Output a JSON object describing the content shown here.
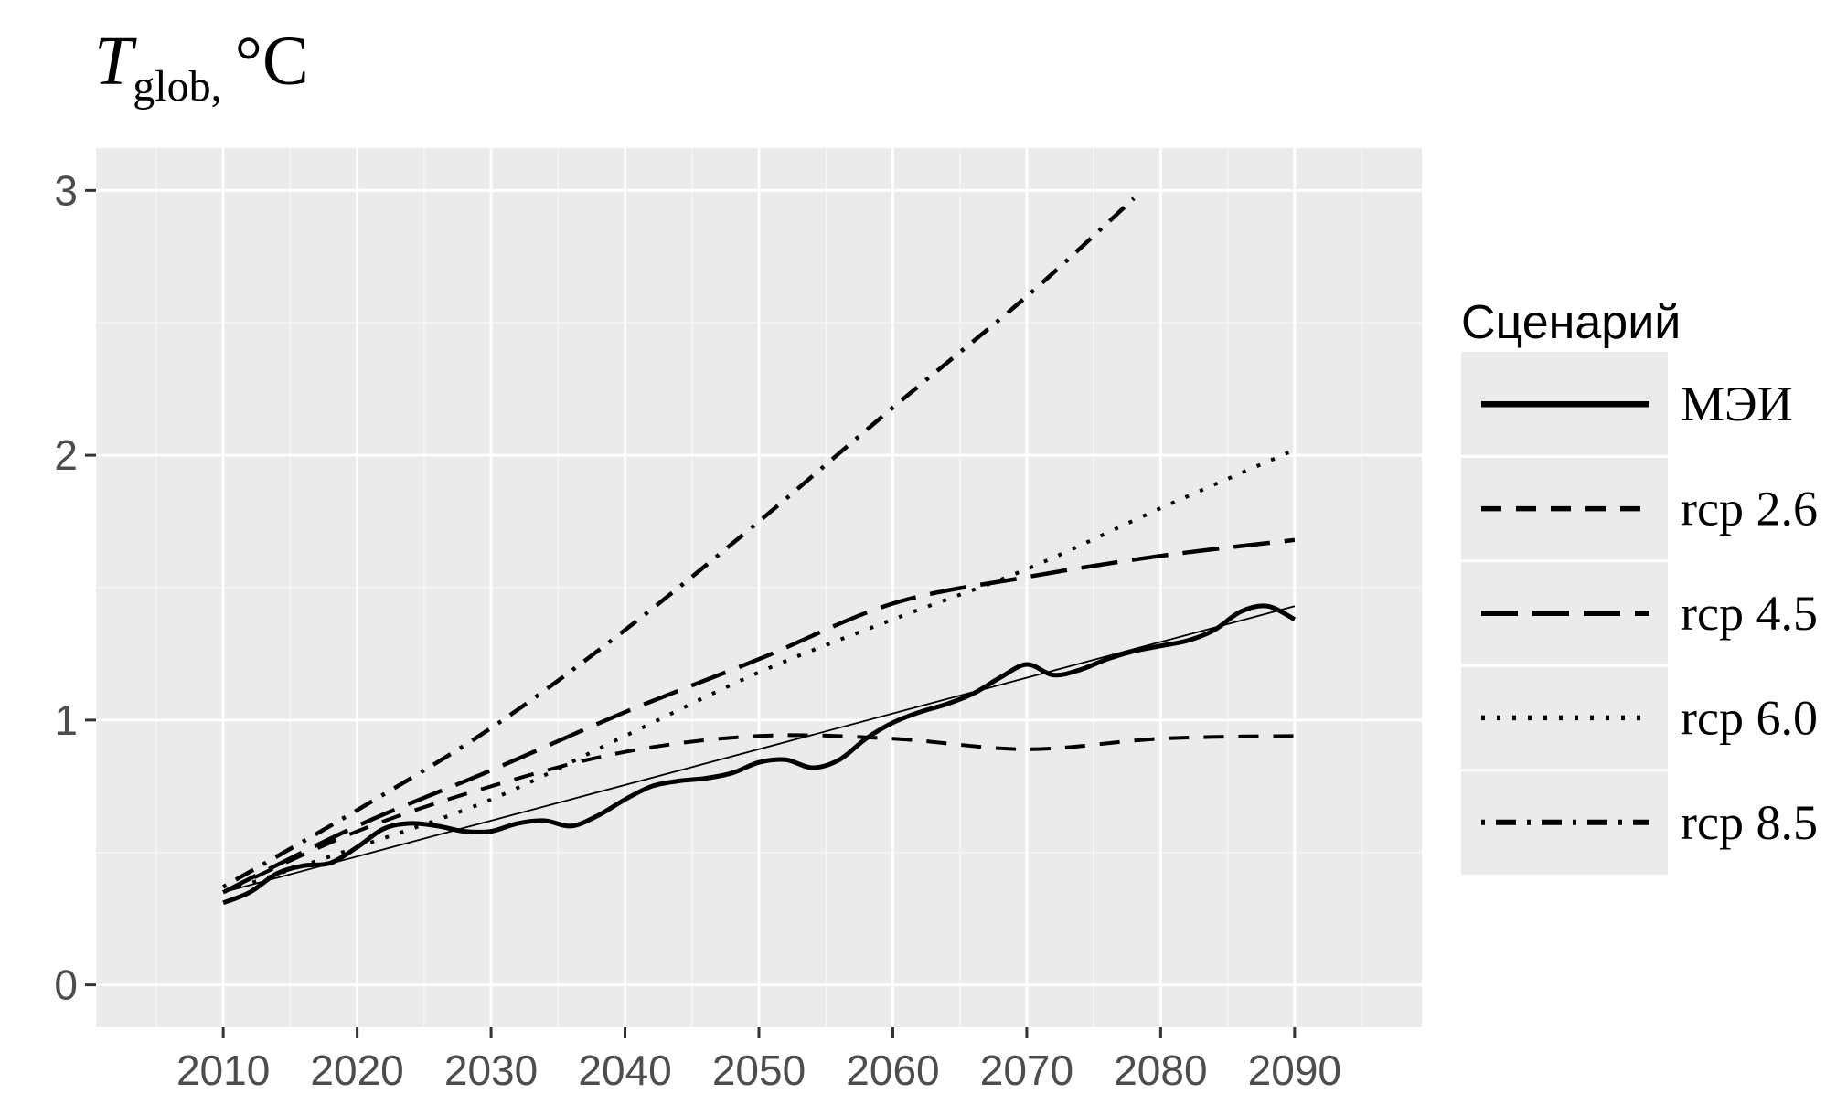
{
  "chart_data": {
    "type": "line",
    "ylabel": {
      "symbol": "T",
      "subscript": "glob,",
      "unit": "°C"
    },
    "xlim": [
      2000.5,
      2099.5
    ],
    "ylim": [
      -0.16,
      3.16
    ],
    "x_ticks": [
      2010,
      2020,
      2030,
      2040,
      2050,
      2060,
      2070,
      2080,
      2090
    ],
    "y_ticks": [
      0,
      1,
      2,
      3
    ],
    "grid": true,
    "legend": {
      "title": "Сценарий",
      "placement": "right"
    },
    "series": [
      {
        "name": "МЭИ",
        "style": "solid",
        "x": [
          2010,
          2012,
          2014,
          2016,
          2018,
          2020,
          2022,
          2024,
          2026,
          2028,
          2030,
          2032,
          2034,
          2036,
          2038,
          2040,
          2042,
          2044,
          2046,
          2048,
          2050,
          2052,
          2054,
          2056,
          2058,
          2060,
          2062,
          2064,
          2066,
          2068,
          2070,
          2072,
          2074,
          2076,
          2078,
          2080,
          2082,
          2084,
          2086,
          2088,
          2090
        ],
        "y": [
          0.31,
          0.35,
          0.42,
          0.45,
          0.46,
          0.52,
          0.59,
          0.61,
          0.6,
          0.58,
          0.58,
          0.61,
          0.62,
          0.6,
          0.64,
          0.7,
          0.75,
          0.77,
          0.78,
          0.8,
          0.84,
          0.85,
          0.82,
          0.85,
          0.93,
          0.99,
          1.03,
          1.06,
          1.1,
          1.16,
          1.21,
          1.17,
          1.19,
          1.23,
          1.26,
          1.28,
          1.3,
          1.34,
          1.41,
          1.43,
          1.38
        ]
      },
      {
        "name": "МЭИ trend",
        "style": "thin",
        "x": [
          2010,
          2090
        ],
        "y": [
          0.35,
          1.43
        ]
      },
      {
        "name": "rcp 2.6",
        "style": "dashed",
        "x": [
          2010,
          2020,
          2030,
          2040,
          2050,
          2060,
          2070,
          2080,
          2090
        ],
        "y": [
          0.35,
          0.58,
          0.75,
          0.88,
          0.94,
          0.93,
          0.89,
          0.93,
          0.94
        ]
      },
      {
        "name": "rcp 4.5",
        "style": "longdash",
        "x": [
          2010,
          2020,
          2030,
          2040,
          2050,
          2060,
          2070,
          2080,
          2090
        ],
        "y": [
          0.35,
          0.6,
          0.81,
          1.03,
          1.23,
          1.44,
          1.54,
          1.62,
          1.68
        ]
      },
      {
        "name": "rcp 6.0",
        "style": "dotted",
        "x": [
          2010,
          2020,
          2030,
          2040,
          2050,
          2060,
          2070,
          2080,
          2090
        ],
        "y": [
          0.35,
          0.52,
          0.7,
          0.94,
          1.18,
          1.38,
          1.57,
          1.8,
          2.02
        ]
      },
      {
        "name": "rcp 8.5",
        "style": "dotdash",
        "x": [
          2010,
          2020,
          2030,
          2040,
          2050,
          2060,
          2070,
          2078
        ],
        "y": [
          0.37,
          0.66,
          0.97,
          1.34,
          1.75,
          2.18,
          2.6,
          2.97
        ]
      }
    ]
  }
}
